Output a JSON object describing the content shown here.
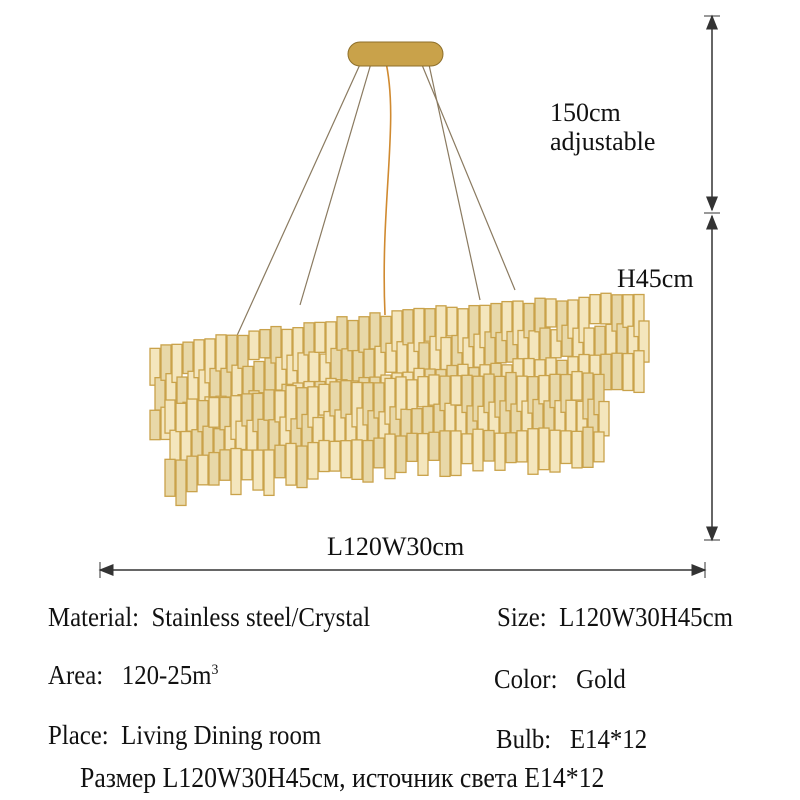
{
  "dimensions": {
    "cable_length": "150cm",
    "cable_note": "adjustable",
    "height": "H45cm",
    "length_width": "L120W30cm"
  },
  "specs": {
    "material": {
      "label": "Material:",
      "value": "Stainless steel/Crystal"
    },
    "size": {
      "label": "Size:",
      "value": "L120W30H45cm"
    },
    "area": {
      "label": "Area:",
      "value": "120-25m",
      "sup": "3"
    },
    "color": {
      "label": "Color:",
      "value": "Gold"
    },
    "place": {
      "label": "Place:",
      "value": "Living Dining room"
    },
    "bulb": {
      "label": "Bulb:",
      "value": "E14*12"
    }
  },
  "russian_caption": "Размер L120W30H45см, источник света E14*12",
  "colors": {
    "gold": "#c9a24a",
    "crystal": "#e8d8a8",
    "line": "#333333"
  }
}
